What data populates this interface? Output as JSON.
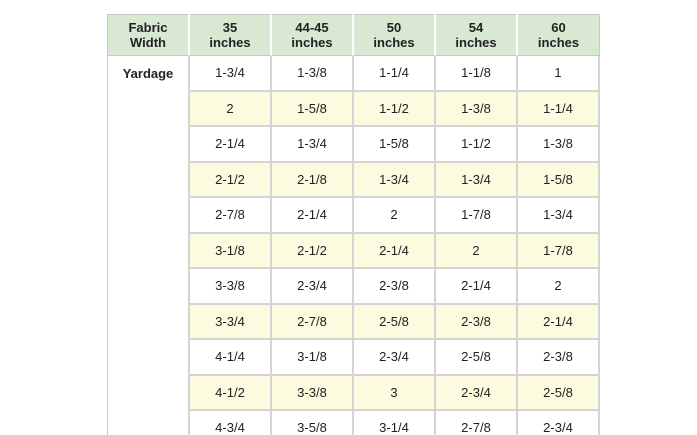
{
  "table": {
    "header": [
      "Fabric\nWidth",
      "35\ninches",
      "44-45\ninches",
      "50\ninches",
      "54\ninches",
      "60\ninches"
    ],
    "row_label": "Yardage",
    "rows": [
      [
        "1-3/4",
        "1-3/8",
        "1-1/4",
        "1-1/8",
        "1"
      ],
      [
        "2",
        "1-5/8",
        "1-1/2",
        "1-3/8",
        "1-1/4"
      ],
      [
        "2-1/4",
        "1-3/4",
        "1-5/8",
        "1-1/2",
        "1-3/8"
      ],
      [
        "2-1/2",
        "2-1/8",
        "1-3/4",
        "1-3/4",
        "1-5/8"
      ],
      [
        "2-7/8",
        "2-1/4",
        "2",
        "1-7/8",
        "1-3/4"
      ],
      [
        "3-1/8",
        "2-1/2",
        "2-1/4",
        "2",
        "1-7/8"
      ],
      [
        "3-3/8",
        "2-3/4",
        "2-3/8",
        "2-1/4",
        "2"
      ],
      [
        "3-3/4",
        "2-7/8",
        "2-5/8",
        "2-3/8",
        "2-1/4"
      ],
      [
        "4-1/4",
        "3-1/8",
        "2-3/4",
        "2-5/8",
        "2-3/8"
      ],
      [
        "4-1/2",
        "3-3/8",
        "3",
        "2-3/4",
        "2-5/8"
      ],
      [
        "4-3/4",
        "3-5/8",
        "3-1/4",
        "2-7/8",
        "2-3/4"
      ]
    ]
  },
  "colors": {
    "header_bg": "#d9e8d2",
    "alt_row_bg": "#fcfbe0",
    "grid_line": "#d4d4d4"
  }
}
